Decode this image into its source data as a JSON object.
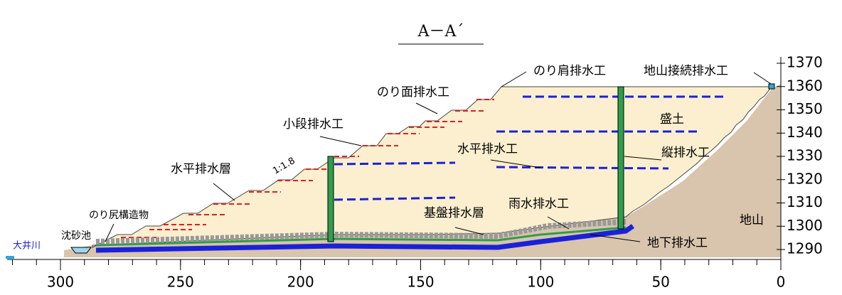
{
  "title": "A－A´",
  "x_axis": {
    "ticks": [
      300,
      250,
      200,
      150,
      100,
      50,
      0
    ]
  },
  "y_axis": {
    "ticks": [
      1290,
      1300,
      1310,
      1320,
      1330,
      1340,
      1350,
      1360,
      1370
    ]
  },
  "labels": {
    "norikata": "のり肩排水工",
    "jiyama_setsuzoku": "地山接続排水工",
    "norimen": "のり面排水工",
    "morido": "盛土",
    "kodan": "小段排水工",
    "suihei_haisuiko": "水平排水工",
    "tate": "縦排水工",
    "slope": "1:1.8",
    "suihei_haisuiso": "水平排水層",
    "norijiri": "のり尻構造物",
    "chinsachi": "沈砂池",
    "oigawa": "大井川",
    "kiban": "基盤排水層",
    "usui": "雨水排水工",
    "jiyama": "地山",
    "chika": "地下排水工"
  }
}
